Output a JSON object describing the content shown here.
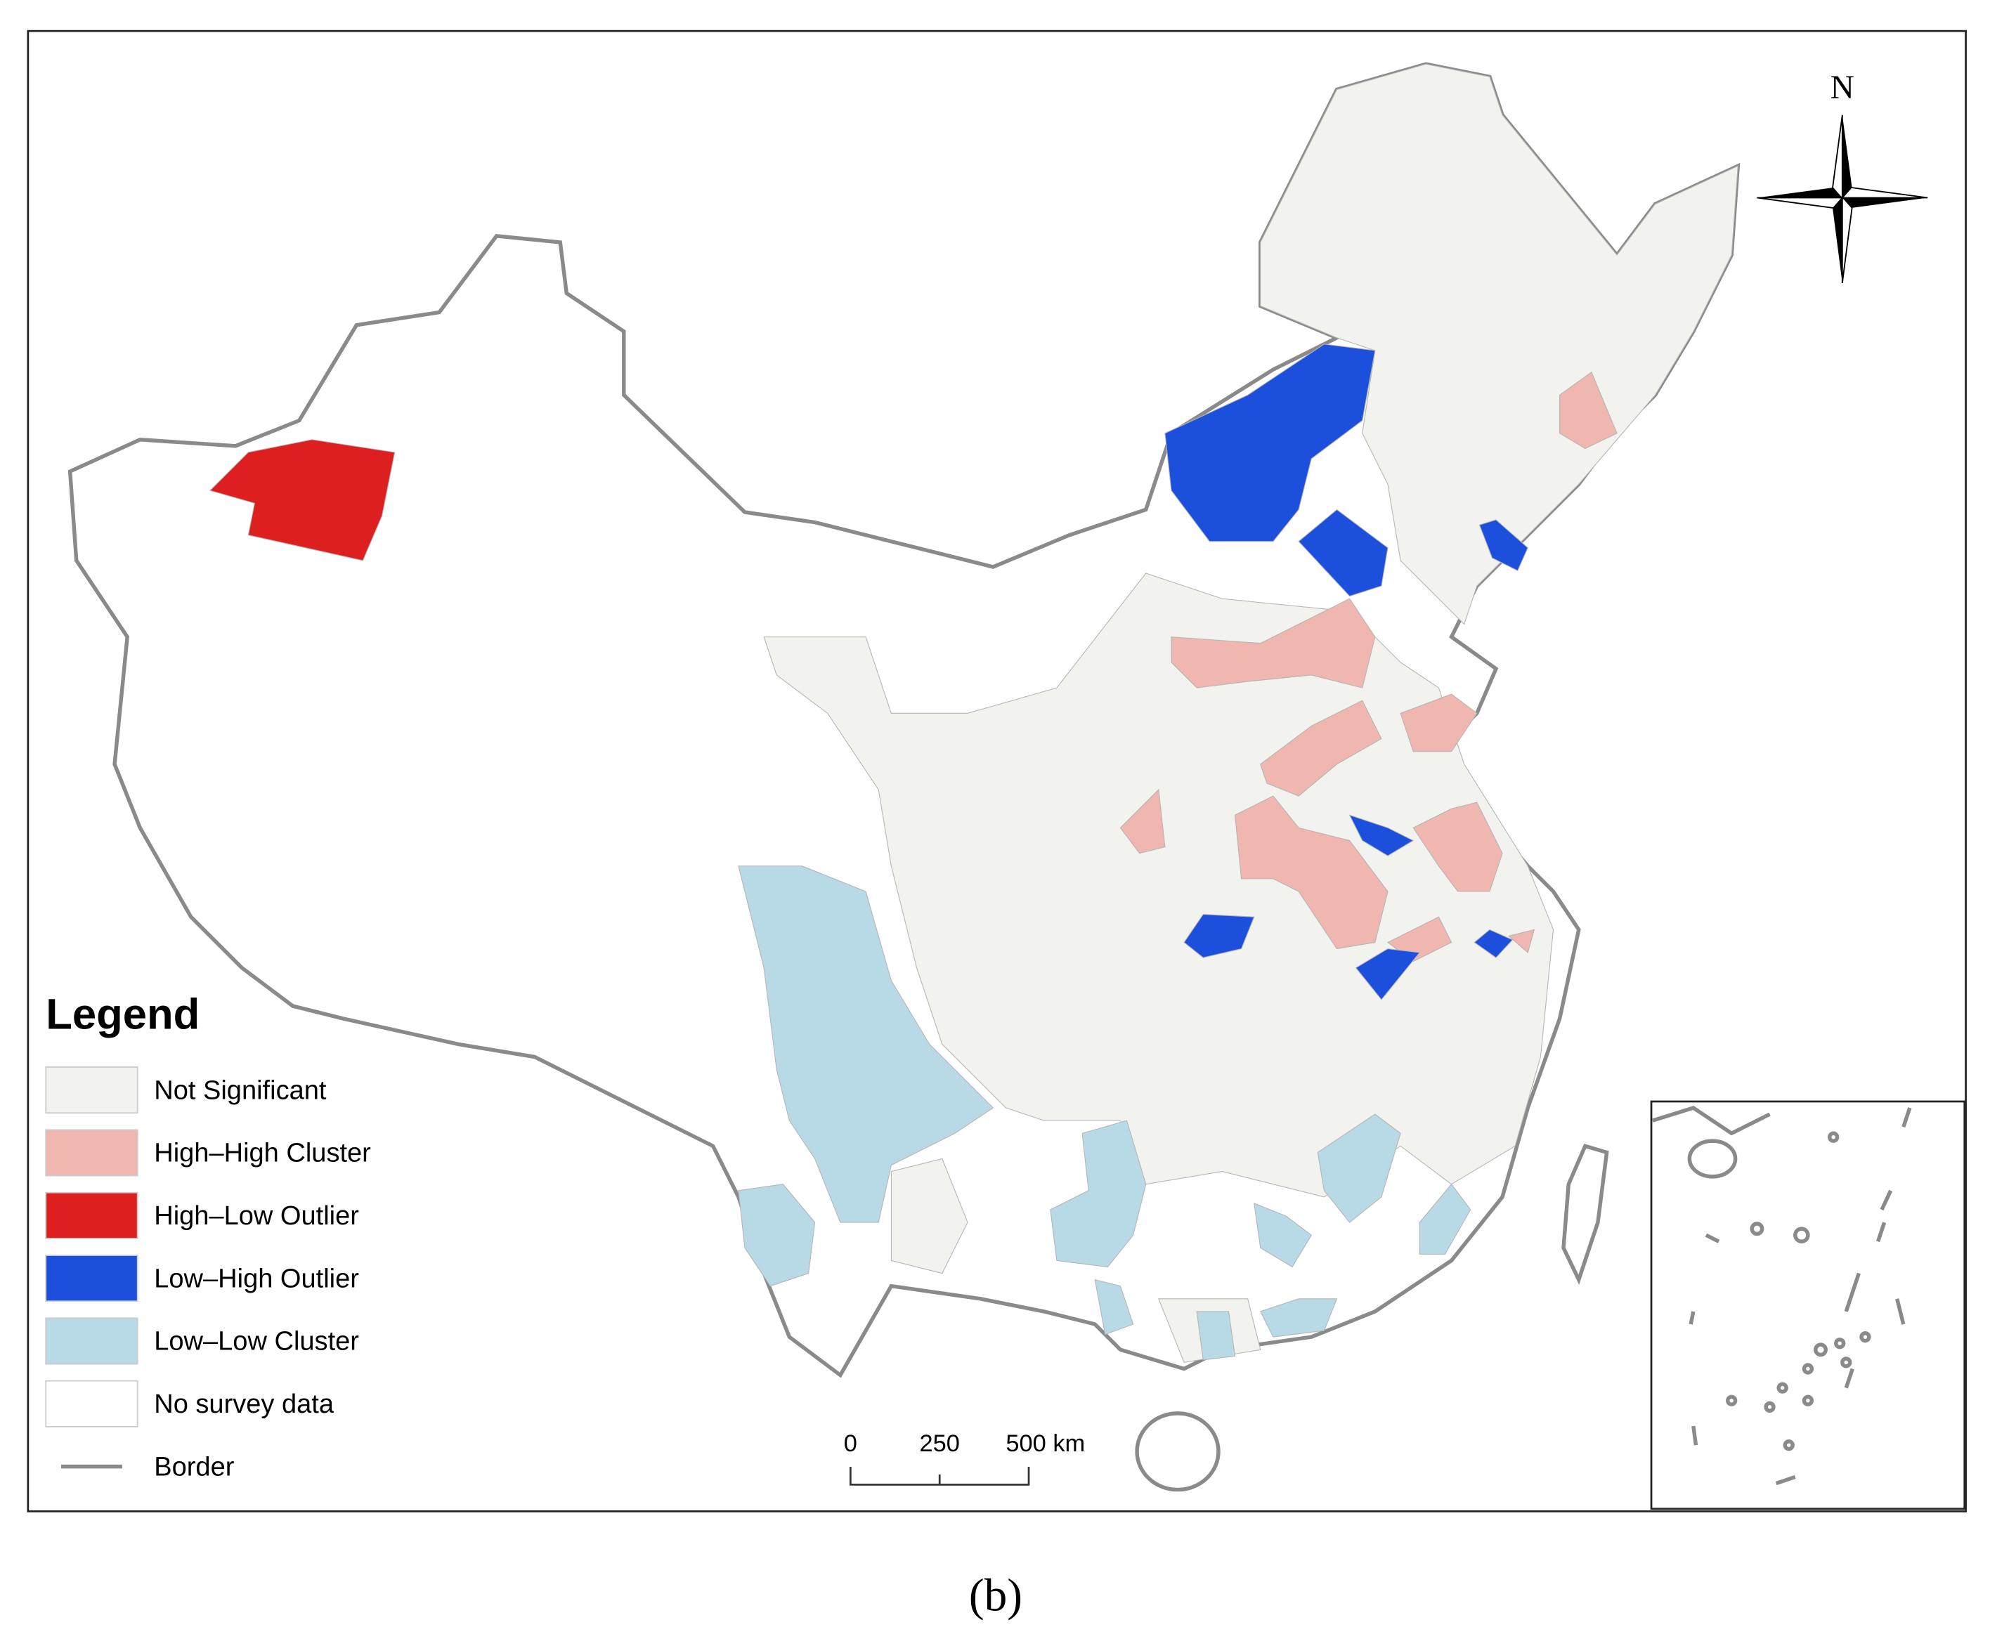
{
  "map": {
    "legend": {
      "title": "Legend",
      "items": [
        {
          "label": "Not Significant",
          "color": "#f2f3ee"
        },
        {
          "label": "High–High Cluster",
          "color": "#f0b6b0"
        },
        {
          "label": "High–Low Outlier",
          "color": "#dd1f1f"
        },
        {
          "label": "Low–High Outlier",
          "color": "#1c4fdc"
        },
        {
          "label": "Low–Low Cluster",
          "color": "#b8d9e6"
        },
        {
          "label": "No survey data",
          "color": "#ffffff"
        },
        {
          "label": "Border",
          "color": "#8a8a8a",
          "style": "line"
        }
      ]
    },
    "scale_bar": {
      "labels": [
        "0",
        "250",
        "500 km"
      ]
    },
    "north": "N",
    "caption": "(b)"
  }
}
